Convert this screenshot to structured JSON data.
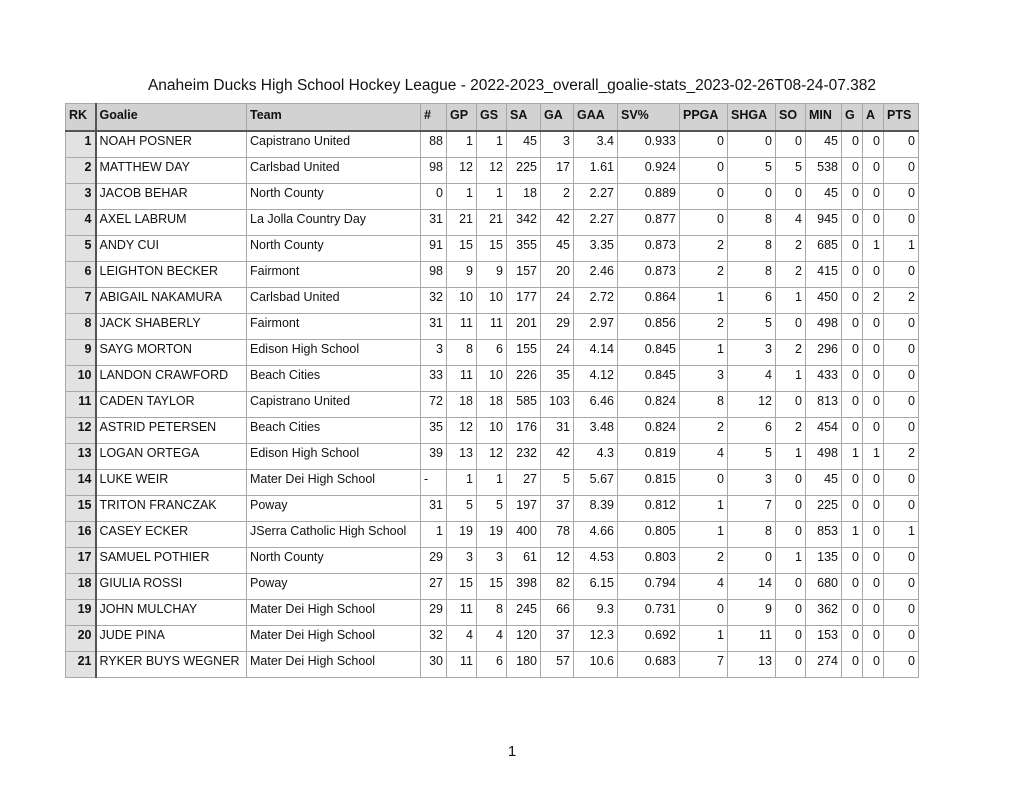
{
  "title": "Anaheim Ducks High School Hockey League - 2022-2023_overall_goalie-stats_2023-02-26T08-24-07.382",
  "columns": [
    "RK",
    "Goalie",
    "Team",
    "#",
    "GP",
    "GS",
    "SA",
    "GA",
    "GAA",
    "SV%",
    "PPGA",
    "SHGA",
    "SO",
    "MIN",
    "G",
    "A",
    "PTS"
  ],
  "rows": [
    [
      "1",
      "NOAH POSNER",
      "Capistrano United",
      "88",
      "1",
      "1",
      "45",
      "3",
      "3.4",
      "0.933",
      "0",
      "0",
      "0",
      "45",
      "0",
      "0",
      "0"
    ],
    [
      "2",
      "MATTHEW DAY",
      "Carlsbad United",
      "98",
      "12",
      "12",
      "225",
      "17",
      "1.61",
      "0.924",
      "0",
      "5",
      "5",
      "538",
      "0",
      "0",
      "0"
    ],
    [
      "3",
      "JACOB BEHAR",
      "North County",
      "0",
      "1",
      "1",
      "18",
      "2",
      "2.27",
      "0.889",
      "0",
      "0",
      "0",
      "45",
      "0",
      "0",
      "0"
    ],
    [
      "4",
      "AXEL LABRUM",
      "La Jolla Country Day",
      "31",
      "21",
      "21",
      "342",
      "42",
      "2.27",
      "0.877",
      "0",
      "8",
      "4",
      "945",
      "0",
      "0",
      "0"
    ],
    [
      "5",
      "ANDY CUI",
      "North County",
      "91",
      "15",
      "15",
      "355",
      "45",
      "3.35",
      "0.873",
      "2",
      "8",
      "2",
      "685",
      "0",
      "1",
      "1"
    ],
    [
      "6",
      "LEIGHTON BECKER",
      "Fairmont",
      "98",
      "9",
      "9",
      "157",
      "20",
      "2.46",
      "0.873",
      "2",
      "8",
      "2",
      "415",
      "0",
      "0",
      "0"
    ],
    [
      "7",
      "ABIGAIL NAKAMURA",
      "Carlsbad United",
      "32",
      "10",
      "10",
      "177",
      "24",
      "2.72",
      "0.864",
      "1",
      "6",
      "1",
      "450",
      "0",
      "2",
      "2"
    ],
    [
      "8",
      "JACK SHABERLY",
      "Fairmont",
      "31",
      "11",
      "11",
      "201",
      "29",
      "2.97",
      "0.856",
      "2",
      "5",
      "0",
      "498",
      "0",
      "0",
      "0"
    ],
    [
      "9",
      "SAYG MORTON",
      "Edison High School",
      "3",
      "8",
      "6",
      "155",
      "24",
      "4.14",
      "0.845",
      "1",
      "3",
      "2",
      "296",
      "0",
      "0",
      "0"
    ],
    [
      "10",
      "LANDON CRAWFORD",
      "Beach Cities",
      "33",
      "11",
      "10",
      "226",
      "35",
      "4.12",
      "0.845",
      "3",
      "4",
      "1",
      "433",
      "0",
      "0",
      "0"
    ],
    [
      "11",
      "CADEN TAYLOR",
      "Capistrano United",
      "72",
      "18",
      "18",
      "585",
      "103",
      "6.46",
      "0.824",
      "8",
      "12",
      "0",
      "813",
      "0",
      "0",
      "0"
    ],
    [
      "12",
      "ASTRID PETERSEN",
      "Beach Cities",
      "35",
      "12",
      "10",
      "176",
      "31",
      "3.48",
      "0.824",
      "2",
      "6",
      "2",
      "454",
      "0",
      "0",
      "0"
    ],
    [
      "13",
      "LOGAN ORTEGA",
      "Edison High School",
      "39",
      "13",
      "12",
      "232",
      "42",
      "4.3",
      "0.819",
      "4",
      "5",
      "1",
      "498",
      "1",
      "1",
      "2"
    ],
    [
      "14",
      "LUKE WEIR",
      "Mater Dei High School",
      "-",
      "1",
      "1",
      "27",
      "5",
      "5.67",
      "0.815",
      "0",
      "3",
      "0",
      "45",
      "0",
      "0",
      "0"
    ],
    [
      "15",
      "TRITON FRANCZAK",
      "Poway",
      "31",
      "5",
      "5",
      "197",
      "37",
      "8.39",
      "0.812",
      "1",
      "7",
      "0",
      "225",
      "0",
      "0",
      "0"
    ],
    [
      "16",
      "CASEY ECKER",
      "JSerra Catholic High School",
      "1",
      "19",
      "19",
      "400",
      "78",
      "4.66",
      "0.805",
      "1",
      "8",
      "0",
      "853",
      "1",
      "0",
      "1"
    ],
    [
      "17",
      "SAMUEL POTHIER",
      "North County",
      "29",
      "3",
      "3",
      "61",
      "12",
      "4.53",
      "0.803",
      "2",
      "0",
      "1",
      "135",
      "0",
      "0",
      "0"
    ],
    [
      "18",
      "GIULIA ROSSI",
      "Poway",
      "27",
      "15",
      "15",
      "398",
      "82",
      "6.15",
      "0.794",
      "4",
      "14",
      "0",
      "680",
      "0",
      "0",
      "0"
    ],
    [
      "19",
      "JOHN MULCHAY",
      "Mater Dei High School",
      "29",
      "11",
      "8",
      "245",
      "66",
      "9.3",
      "0.731",
      "0",
      "9",
      "0",
      "362",
      "0",
      "0",
      "0"
    ],
    [
      "20",
      "JUDE PINA",
      "Mater Dei High School",
      "32",
      "4",
      "4",
      "120",
      "37",
      "12.3",
      "0.692",
      "1",
      "11",
      "0",
      "153",
      "0",
      "0",
      "0"
    ],
    [
      "21",
      "RYKER BUYS WEGNER",
      "Mater Dei High School",
      "30",
      "11",
      "6",
      "180",
      "57",
      "10.6",
      "0.683",
      "7",
      "13",
      "0",
      "274",
      "0",
      "0",
      "0"
    ]
  ],
  "page_number": "1"
}
